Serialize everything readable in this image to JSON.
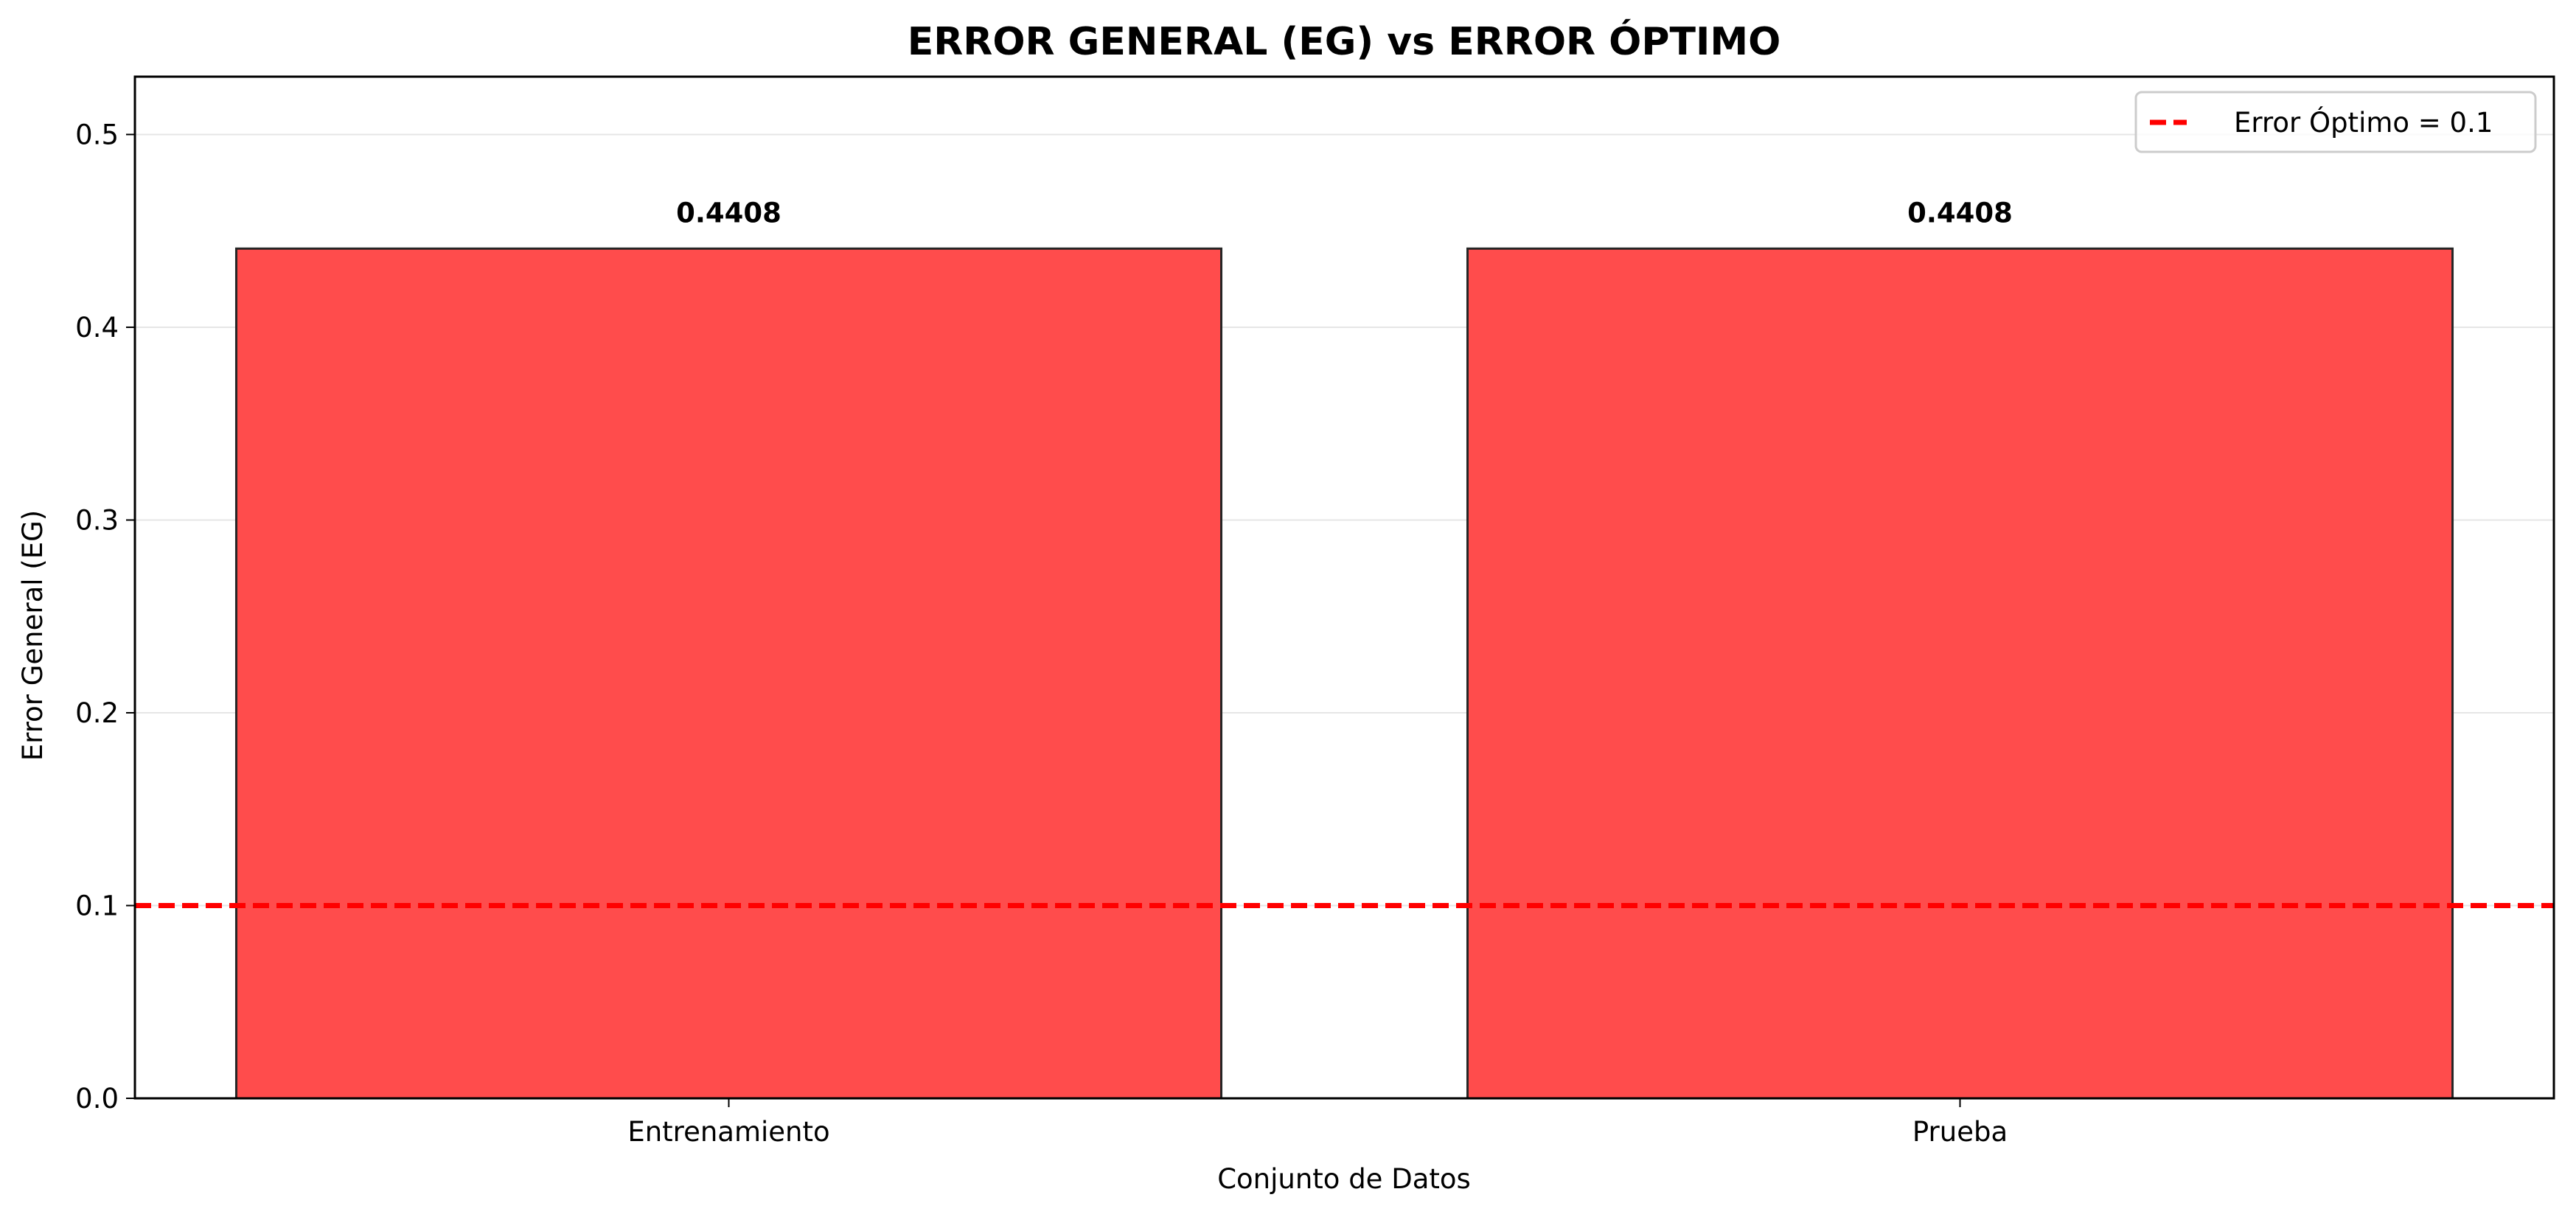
{
  "chart_data": {
    "type": "bar",
    "title": "ERROR GENERAL (EG) vs ERROR ÓPTIMO",
    "xlabel": "Conjunto de Datos",
    "ylabel": "Error General (EG)",
    "categories": [
      "Entrenamiento",
      "Prueba"
    ],
    "values": [
      0.4408,
      0.4408
    ],
    "value_labels": [
      "0.4408",
      "0.4408"
    ],
    "ylim": [
      0,
      0.53
    ],
    "yticks": [
      0.0,
      0.1,
      0.2,
      0.3,
      0.4,
      0.5
    ],
    "ytick_labels": [
      "0.0",
      "0.1",
      "0.2",
      "0.3",
      "0.4",
      "0.5"
    ],
    "bar_color": "#ff4c4c",
    "bar_edge_color": "#262626",
    "reference_line": {
      "value": 0.1,
      "color": "#ff0000",
      "style": "dashed"
    },
    "legend": {
      "position": "top-right",
      "entries": [
        "Error Óptimo = 0.1"
      ]
    },
    "grid": {
      "y": true,
      "x": false
    }
  }
}
